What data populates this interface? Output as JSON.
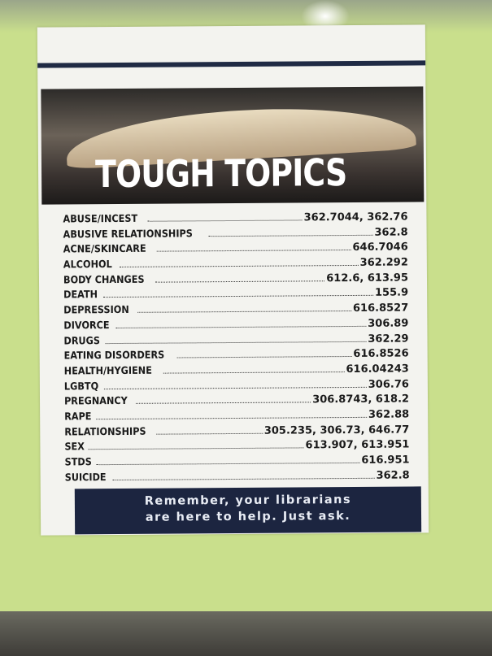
{
  "title": "TOUGH TOPICS",
  "topics": [
    {
      "label": "ABUSE/INCEST",
      "call_numbers": "362.7044, 362.76"
    },
    {
      "label": "ABUSIVE RELATIONSHIPS",
      "call_numbers": "362.8"
    },
    {
      "label": "ACNE/SKINCARE",
      "call_numbers": "646.7046"
    },
    {
      "label": "ALCOHOL",
      "call_numbers": "362.292"
    },
    {
      "label": "BODY CHANGES",
      "call_numbers": "612.6, 613.95"
    },
    {
      "label": "DEATH",
      "call_numbers": "155.9"
    },
    {
      "label": "DEPRESSION",
      "call_numbers": "616.8527"
    },
    {
      "label": "DIVORCE",
      "call_numbers": "306.89"
    },
    {
      "label": "DRUGS",
      "call_numbers": "362.29"
    },
    {
      "label": "EATING DISORDERS",
      "call_numbers": "616.8526"
    },
    {
      "label": "HEALTH/HYGIENE",
      "call_numbers": "616.04243"
    },
    {
      "label": "LGBTQ",
      "call_numbers": "306.76"
    },
    {
      "label": "PREGNANCY",
      "call_numbers": "306.8743, 618.2"
    },
    {
      "label": "RAPE",
      "call_numbers": "362.88"
    },
    {
      "label": "RELATIONSHIPS",
      "call_numbers": "305.235, 306.73, 646.77"
    },
    {
      "label": "SEX",
      "call_numbers": "613.907, 613.951"
    },
    {
      "label": "STDS",
      "call_numbers": "616.951"
    },
    {
      "label": "SUICIDE",
      "call_numbers": "362.8"
    }
  ],
  "footer": {
    "line1": "Remember, your librarians",
    "line2": "are here to help. Just ask."
  },
  "colors": {
    "background": "#c9df8c",
    "navy": "#1c2540",
    "paper": "#f3f3ef"
  }
}
